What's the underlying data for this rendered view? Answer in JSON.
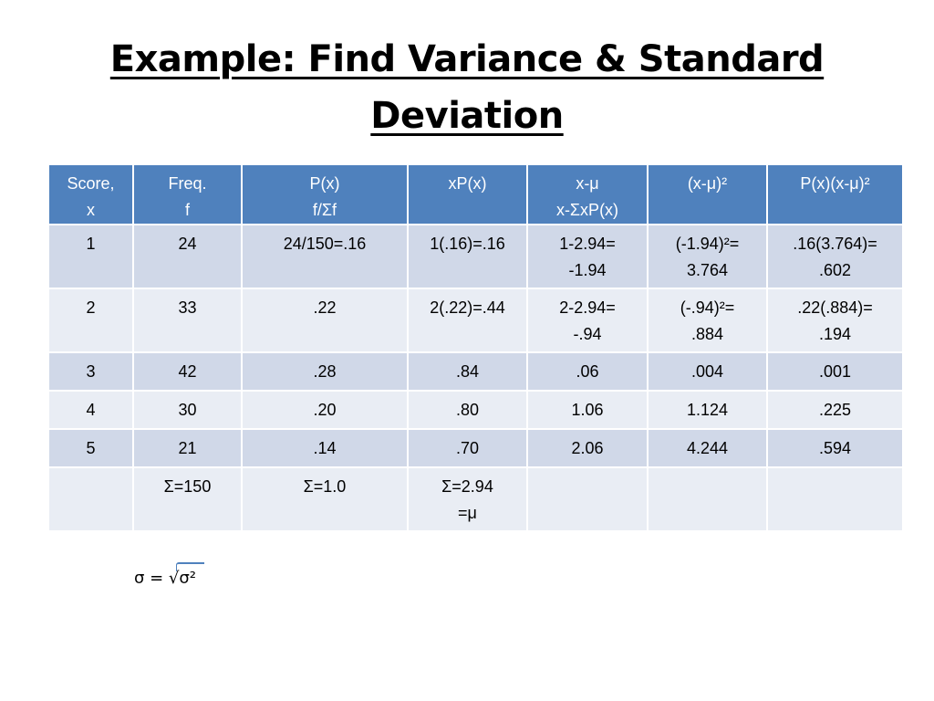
{
  "title": {
    "line1": "Example: Find Variance & Standard",
    "line2": "Deviation"
  },
  "table": {
    "headers": [
      [
        "Score,",
        "x"
      ],
      [
        "Freq.",
        "f"
      ],
      [
        "P(x)",
        "f/Σf"
      ],
      [
        "xP(x)",
        ""
      ],
      [
        "x-μ",
        "x-ΣxP(x)"
      ],
      [
        "(x-μ)²",
        ""
      ],
      [
        "P(x)(x-μ)²",
        ""
      ]
    ],
    "rows": [
      [
        [
          "1",
          ""
        ],
        [
          "24",
          ""
        ],
        [
          "24/150=.16",
          ""
        ],
        [
          "1(.16)=.16",
          ""
        ],
        [
          "1-2.94=",
          "-1.94"
        ],
        [
          "(-1.94)²=",
          "3.764"
        ],
        [
          ".16(3.764)=",
          ".602"
        ]
      ],
      [
        [
          "2",
          ""
        ],
        [
          "33",
          ""
        ],
        [
          ".22",
          ""
        ],
        [
          "2(.22)=.44",
          ""
        ],
        [
          "2-2.94=",
          "-.94"
        ],
        [
          "(-.94)²=",
          ".884"
        ],
        [
          ".22(.884)=",
          ".194"
        ]
      ],
      [
        [
          "3",
          ""
        ],
        [
          "42",
          ""
        ],
        [
          ".28",
          ""
        ],
        [
          ".84",
          ""
        ],
        [
          ".06",
          ""
        ],
        [
          ".004",
          ""
        ],
        [
          ".001",
          ""
        ]
      ],
      [
        [
          "4",
          ""
        ],
        [
          "30",
          ""
        ],
        [
          ".20",
          ""
        ],
        [
          ".80",
          ""
        ],
        [
          "1.06",
          ""
        ],
        [
          "1.124",
          ""
        ],
        [
          ".225",
          ""
        ]
      ],
      [
        [
          "5",
          ""
        ],
        [
          "21",
          ""
        ],
        [
          ".14",
          ""
        ],
        [
          ".70",
          ""
        ],
        [
          "2.06",
          ""
        ],
        [
          "4.244",
          ""
        ],
        [
          ".594",
          ""
        ]
      ],
      [
        [
          "",
          ""
        ],
        [
          "Σ=150",
          ""
        ],
        [
          "Σ=1.0",
          ""
        ],
        [
          "Σ=2.94",
          "=μ"
        ],
        [
          "",
          ""
        ],
        [
          "",
          ""
        ],
        [
          "",
          ""
        ]
      ]
    ]
  },
  "formula": "σ = √σ²"
}
